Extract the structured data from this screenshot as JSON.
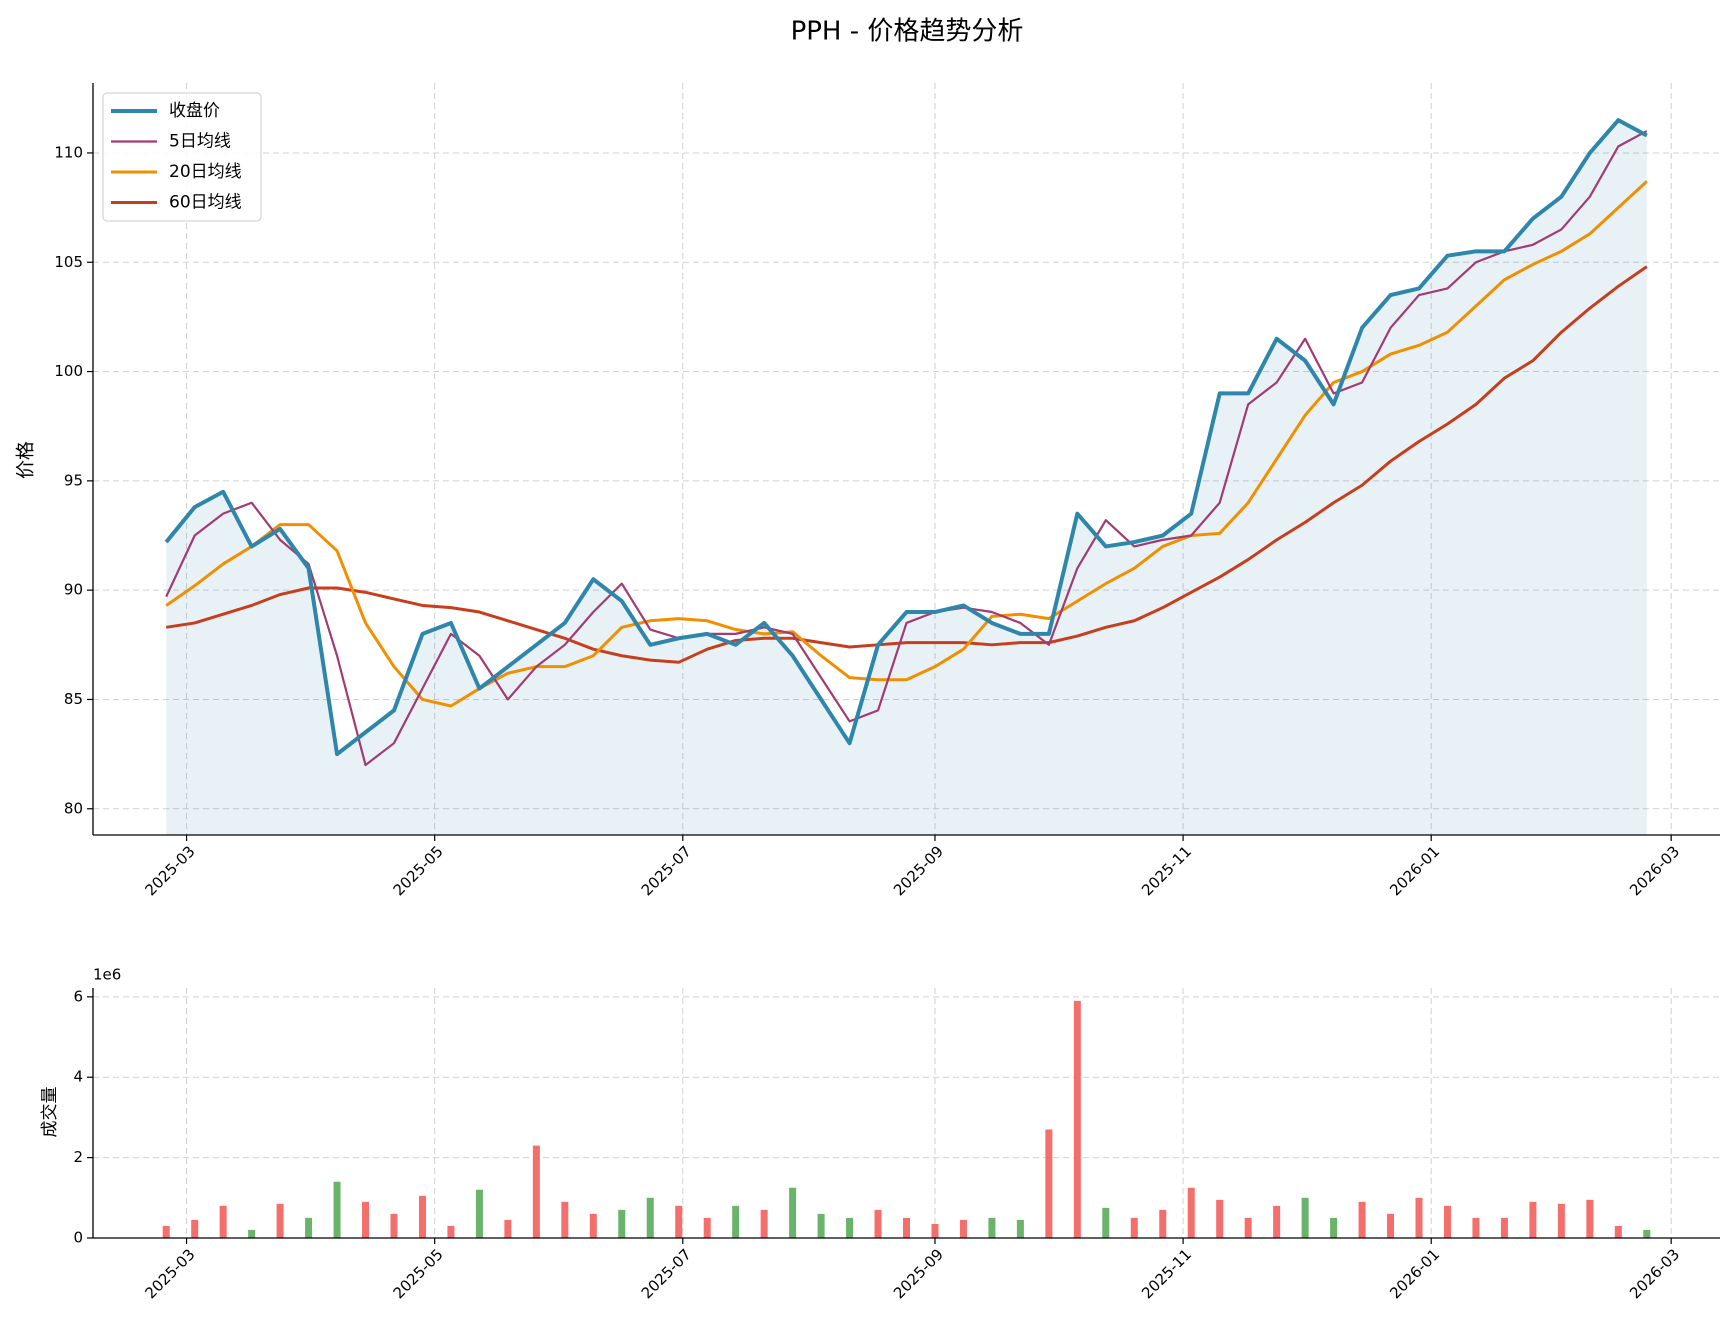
{
  "chart_data": [
    {
      "type": "line",
      "title": "PPH - 价格趋势分析",
      "y_label": "价格",
      "x": [
        "2025-02-24",
        "2025-03-03",
        "2025-03-10",
        "2025-03-17",
        "2025-03-24",
        "2025-03-31",
        "2025-04-07",
        "2025-04-14",
        "2025-04-21",
        "2025-04-28",
        "2025-05-05",
        "2025-05-12",
        "2025-05-19",
        "2025-05-26",
        "2025-06-02",
        "2025-06-09",
        "2025-06-16",
        "2025-06-23",
        "2025-06-30",
        "2025-07-07",
        "2025-07-14",
        "2025-07-21",
        "2025-07-28",
        "2025-08-04",
        "2025-08-11",
        "2025-08-18",
        "2025-08-25",
        "2025-09-01",
        "2025-09-08",
        "2025-09-15",
        "2025-09-22",
        "2025-09-29",
        "2025-10-06",
        "2025-10-13",
        "2025-10-20",
        "2025-10-27",
        "2025-11-03",
        "2025-11-10",
        "2025-11-17",
        "2025-11-24",
        "2025-12-01",
        "2025-12-08",
        "2025-12-15",
        "2025-12-22",
        "2025-12-29",
        "2026-01-05",
        "2026-01-12",
        "2026-01-19",
        "2026-01-26",
        "2026-02-02",
        "2026-02-09",
        "2026-02-16",
        "2026-02-23"
      ],
      "series": [
        {
          "name": "收盘价",
          "color": "#2e86ab",
          "width": 4,
          "fill": true,
          "values": [
            92.2,
            93.8,
            94.5,
            92,
            92.8,
            91,
            82.5,
            83.5,
            84.5,
            88,
            88.5,
            85.5,
            86.5,
            87.5,
            88.5,
            90.5,
            89.5,
            87.5,
            87.8,
            88,
            87.5,
            88.5,
            87,
            85,
            83,
            87.5,
            89,
            89,
            89.3,
            88.5,
            88,
            88,
            93.5,
            92,
            92.2,
            92.5,
            93.5,
            99,
            99,
            101.5,
            100.5,
            98.5,
            102,
            103.5,
            103.8,
            105.3,
            105.5,
            105.5,
            107,
            108,
            110,
            111.5,
            110.8
          ]
        },
        {
          "name": "5日均线",
          "color": "#a23b72",
          "width": 2.2,
          "values": [
            89.7,
            92.5,
            93.5,
            94,
            92.3,
            91.2,
            87,
            82,
            83,
            85.5,
            88,
            87,
            85,
            86.5,
            87.5,
            89,
            90.3,
            88.2,
            87.8,
            88,
            88,
            88.3,
            88,
            86,
            84,
            84.5,
            88.5,
            89,
            89.2,
            89,
            88.5,
            87.5,
            91,
            93.2,
            92,
            92.3,
            92.5,
            94,
            98.5,
            99.5,
            101.5,
            99,
            99.5,
            102,
            103.5,
            103.8,
            105,
            105.5,
            105.8,
            106.5,
            108,
            110.3,
            111
          ]
        },
        {
          "name": "20日均线",
          "color": "#f18f01",
          "width": 3,
          "values": [
            89.3,
            90.2,
            91.2,
            92,
            93,
            93,
            91.8,
            88.5,
            86.5,
            85,
            84.7,
            85.5,
            86.2,
            86.5,
            86.5,
            87,
            88.3,
            88.6,
            88.7,
            88.6,
            88.2,
            88,
            88.1,
            87,
            86,
            85.9,
            85.9,
            86.5,
            87.3,
            88.8,
            88.9,
            88.7,
            89.5,
            90.3,
            91,
            92,
            92.5,
            92.6,
            94,
            96,
            98,
            99.5,
            100,
            100.8,
            101.2,
            101.8,
            103,
            104.2,
            104.9,
            105.5,
            106.3,
            107.5,
            108.7
          ]
        },
        {
          "name": "60日均线",
          "color": "#c73e1d",
          "width": 3,
          "values": [
            88.3,
            88.5,
            88.9,
            89.3,
            89.8,
            90.1,
            90.1,
            89.9,
            89.6,
            89.3,
            89.2,
            89,
            88.6,
            88.2,
            87.8,
            87.3,
            87,
            86.8,
            86.7,
            87.3,
            87.7,
            87.8,
            87.8,
            87.6,
            87.4,
            87.5,
            87.6,
            87.6,
            87.6,
            87.5,
            87.6,
            87.6,
            87.9,
            88.3,
            88.6,
            89.2,
            89.9,
            90.6,
            91.4,
            92.3,
            93.1,
            94,
            94.8,
            95.9,
            96.8,
            97.6,
            98.5,
            99.7,
            100.5,
            101.8,
            102.9,
            103.9,
            104.8
          ]
        }
      ],
      "xlim": [
        "2025-02-06",
        "2026-03-13"
      ],
      "xticks": [
        {
          "value": "2025-03-01",
          "label": "2025-03"
        },
        {
          "value": "2025-05-01",
          "label": "2025-05"
        },
        {
          "value": "2025-07-01",
          "label": "2025-07"
        },
        {
          "value": "2025-09-01",
          "label": "2025-09"
        },
        {
          "value": "2025-11-01",
          "label": "2025-11"
        },
        {
          "value": "2026-01-01",
          "label": "2026-01"
        },
        {
          "value": "2026-03-01",
          "label": "2026-03"
        }
      ],
      "ylim": [
        78.8,
        113.2
      ],
      "yticks": [
        80,
        85,
        90,
        95,
        100,
        105,
        110
      ],
      "grid": true,
      "legend": "upper left"
    },
    {
      "type": "bar",
      "y_label": "成交量",
      "y_offset_label": "1e6",
      "up_color": "#f25f5c",
      "down_color": "#5aab5a",
      "x": [
        "2025-02-24",
        "2025-03-03",
        "2025-03-10",
        "2025-03-17",
        "2025-03-24",
        "2025-03-31",
        "2025-04-07",
        "2025-04-14",
        "2025-04-21",
        "2025-04-28",
        "2025-05-05",
        "2025-05-12",
        "2025-05-19",
        "2025-05-26",
        "2025-06-02",
        "2025-06-09",
        "2025-06-16",
        "2025-06-23",
        "2025-06-30",
        "2025-07-07",
        "2025-07-14",
        "2025-07-21",
        "2025-07-28",
        "2025-08-04",
        "2025-08-11",
        "2025-08-18",
        "2025-08-25",
        "2025-09-01",
        "2025-09-08",
        "2025-09-15",
        "2025-09-22",
        "2025-09-29",
        "2025-10-06",
        "2025-10-13",
        "2025-10-20",
        "2025-10-27",
        "2025-11-03",
        "2025-11-10",
        "2025-11-17",
        "2025-11-24",
        "2025-12-01",
        "2025-12-08",
        "2025-12-15",
        "2025-12-22",
        "2025-12-29",
        "2026-01-05",
        "2026-01-12",
        "2026-01-19",
        "2026-01-26",
        "2026-02-02",
        "2026-02-09",
        "2026-02-16",
        "2026-02-23"
      ],
      "values": [
        300000,
        450000,
        800000,
        200000,
        850000,
        500000,
        1400000,
        900000,
        600000,
        1050000,
        300000,
        1200000,
        450000,
        2300000,
        900000,
        600000,
        700000,
        1000000,
        800000,
        500000,
        800000,
        700000,
        1250000,
        600000,
        500000,
        700000,
        500000,
        350000,
        450000,
        500000,
        450000,
        2700000,
        5900000,
        750000,
        500000,
        700000,
        1250000,
        950000,
        500000,
        800000,
        1000000,
        500000,
        900000,
        600000,
        1000000,
        800000,
        500000,
        500000,
        900000,
        850000,
        950000,
        300000,
        200000
      ],
      "xlim": [
        "2025-02-06",
        "2026-03-13"
      ],
      "xticks": [
        {
          "value": "2025-03-01",
          "label": "2025-03"
        },
        {
          "value": "2025-05-01",
          "label": "2025-05"
        },
        {
          "value": "2025-07-01",
          "label": "2025-07"
        },
        {
          "value": "2025-09-01",
          "label": "2025-09"
        },
        {
          "value": "2025-11-01",
          "label": "2025-11"
        },
        {
          "value": "2026-01-01",
          "label": "2026-01"
        },
        {
          "value": "2026-03-01",
          "label": "2026-03"
        }
      ],
      "ylim": [
        0,
        6220000
      ],
      "yticks": [
        0,
        {
          "value": 2000000,
          "label": "2"
        },
        {
          "value": 4000000,
          "label": "4"
        },
        {
          "value": 6000000,
          "label": "6"
        }
      ],
      "grid": true
    }
  ]
}
